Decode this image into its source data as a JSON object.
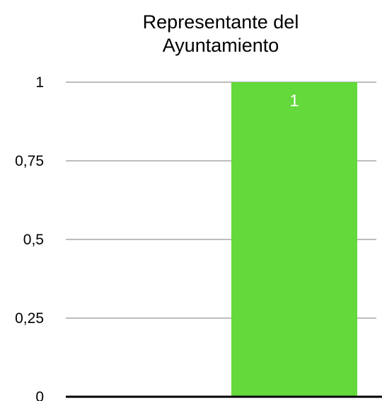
{
  "chart_data": {
    "type": "bar",
    "title_lines": [
      "Representante del",
      "Ayuntamiento"
    ],
    "categories": [
      ""
    ],
    "values": [
      1
    ],
    "data_labels": [
      "1"
    ],
    "ylim": [
      0,
      1
    ],
    "y_ticks": [
      0,
      0.25,
      0.5,
      0.75,
      1
    ],
    "y_tick_labels": [
      "0",
      "0,25",
      "0,5",
      "0,75",
      "1"
    ],
    "grid": true,
    "legend": "none",
    "colors": {
      "bar": "#63d93b",
      "grid": "#bdbdbd",
      "baseline": "#000000",
      "data_label": "#ffffff"
    }
  }
}
